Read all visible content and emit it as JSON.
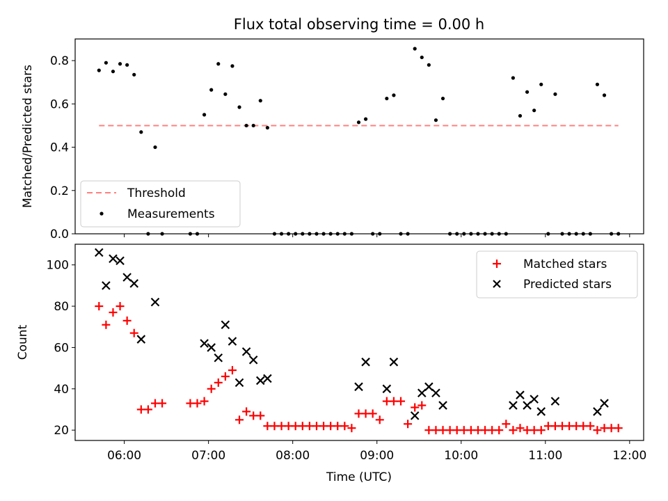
{
  "chart_data": [
    {
      "type": "scatter",
      "title": "Flux total observing time = 0.00 h",
      "ylabel": "Matched/Predicted stars",
      "xlim": [
        "05:25",
        "12:10"
      ],
      "ylim": [
        0,
        0.9
      ],
      "y_ticks": [
        "0.0",
        "0.2",
        "0.4",
        "0.6",
        "0.8"
      ],
      "y_tick_values": [
        0,
        0.2,
        0.4,
        0.6,
        0.8
      ],
      "legend_position": "lower-left",
      "threshold": {
        "name": "Threshold",
        "value": 0.5,
        "x_start": "05:42",
        "x_end": "11:52",
        "color": "#ff7f7f",
        "style": "dashed"
      },
      "series": [
        {
          "name": "Measurements",
          "color": "#000000",
          "marker": "dot",
          "points": [
            [
              "05:42",
              0.755
            ],
            [
              "05:47",
              0.79
            ],
            [
              "05:52",
              0.75
            ],
            [
              "05:57",
              0.785
            ],
            [
              "06:02",
              0.78
            ],
            [
              "06:07",
              0.735
            ],
            [
              "06:12",
              0.47
            ],
            [
              "06:17",
              0.0
            ],
            [
              "06:22",
              0.4
            ],
            [
              "06:27",
              0.0
            ],
            [
              "06:47",
              0.0
            ],
            [
              "06:52",
              0.0
            ],
            [
              "06:57",
              0.55
            ],
            [
              "07:02",
              0.665
            ],
            [
              "07:07",
              0.785
            ],
            [
              "07:12",
              0.645
            ],
            [
              "07:17",
              0.775
            ],
            [
              "07:22",
              0.585
            ],
            [
              "07:27",
              0.5
            ],
            [
              "07:32",
              0.5
            ],
            [
              "07:37",
              0.615
            ],
            [
              "07:42",
              0.49
            ],
            [
              "07:47",
              0.0
            ],
            [
              "07:52",
              0.0
            ],
            [
              "07:57",
              0.0
            ],
            [
              "08:02",
              0.0
            ],
            [
              "08:07",
              0.0
            ],
            [
              "08:12",
              0.0
            ],
            [
              "08:17",
              0.0
            ],
            [
              "08:22",
              0.0
            ],
            [
              "08:27",
              0.0
            ],
            [
              "08:32",
              0.0
            ],
            [
              "08:37",
              0.0
            ],
            [
              "08:42",
              0.0
            ],
            [
              "08:47",
              0.515
            ],
            [
              "08:52",
              0.53
            ],
            [
              "08:57",
              0.0
            ],
            [
              "09:02",
              0.0
            ],
            [
              "09:07",
              0.625
            ],
            [
              "09:12",
              0.64
            ],
            [
              "09:17",
              0.0
            ],
            [
              "09:22",
              0.0
            ],
            [
              "09:27",
              0.855
            ],
            [
              "09:32",
              0.815
            ],
            [
              "09:37",
              0.78
            ],
            [
              "09:42",
              0.525
            ],
            [
              "09:47",
              0.625
            ],
            [
              "09:52",
              0.0
            ],
            [
              "09:57",
              0.0
            ],
            [
              "10:02",
              0.0
            ],
            [
              "10:07",
              0.0
            ],
            [
              "10:12",
              0.0
            ],
            [
              "10:17",
              0.0
            ],
            [
              "10:22",
              0.0
            ],
            [
              "10:27",
              0.0
            ],
            [
              "10:32",
              0.0
            ],
            [
              "10:37",
              0.72
            ],
            [
              "10:42",
              0.545
            ],
            [
              "10:47",
              0.655
            ],
            [
              "10:52",
              0.57
            ],
            [
              "10:57",
              0.69
            ],
            [
              "11:02",
              0.0
            ],
            [
              "11:07",
              0.645
            ],
            [
              "11:12",
              0.0
            ],
            [
              "11:17",
              0.0
            ],
            [
              "11:22",
              0.0
            ],
            [
              "11:27",
              0.0
            ],
            [
              "11:32",
              0.0
            ],
            [
              "11:37",
              0.69
            ],
            [
              "11:42",
              0.64
            ],
            [
              "11:47",
              0.0
            ],
            [
              "11:52",
              0.0
            ]
          ]
        }
      ]
    },
    {
      "type": "scatter",
      "xlabel": "Time (UTC)",
      "ylabel": "Count",
      "xlim": [
        "05:25",
        "12:10"
      ],
      "ylim": [
        15,
        110
      ],
      "x_ticks": [
        "06:00",
        "07:00",
        "08:00",
        "09:00",
        "10:00",
        "11:00",
        "12:00"
      ],
      "y_ticks": [
        "20",
        "40",
        "60",
        "80",
        "100"
      ],
      "y_tick_values": [
        20,
        40,
        60,
        80,
        100
      ],
      "legend_position": "upper-right",
      "series": [
        {
          "name": "Matched stars",
          "color": "#ff0000",
          "marker": "plus",
          "points": [
            [
              "05:42",
              80
            ],
            [
              "05:47",
              71
            ],
            [
              "05:52",
              77
            ],
            [
              "05:57",
              80
            ],
            [
              "06:02",
              73
            ],
            [
              "06:07",
              67
            ],
            [
              "06:12",
              30
            ],
            [
              "06:17",
              30
            ],
            [
              "06:22",
              33
            ],
            [
              "06:27",
              33
            ],
            [
              "06:47",
              33
            ],
            [
              "06:52",
              33
            ],
            [
              "06:57",
              34
            ],
            [
              "07:02",
              40
            ],
            [
              "07:07",
              43
            ],
            [
              "07:12",
              46
            ],
            [
              "07:17",
              49
            ],
            [
              "07:22",
              25
            ],
            [
              "07:27",
              29
            ],
            [
              "07:32",
              27
            ],
            [
              "07:37",
              27
            ],
            [
              "07:42",
              22
            ],
            [
              "07:47",
              22
            ],
            [
              "07:52",
              22
            ],
            [
              "07:57",
              22
            ],
            [
              "08:02",
              22
            ],
            [
              "08:07",
              22
            ],
            [
              "08:12",
              22
            ],
            [
              "08:17",
              22
            ],
            [
              "08:22",
              22
            ],
            [
              "08:27",
              22
            ],
            [
              "08:32",
              22
            ],
            [
              "08:37",
              22
            ],
            [
              "08:42",
              21
            ],
            [
              "08:47",
              28
            ],
            [
              "08:52",
              28
            ],
            [
              "08:57",
              28
            ],
            [
              "09:02",
              25
            ],
            [
              "09:07",
              34
            ],
            [
              "09:12",
              34
            ],
            [
              "09:17",
              34
            ],
            [
              "09:22",
              23
            ],
            [
              "09:27",
              31
            ],
            [
              "09:32",
              32
            ],
            [
              "09:37",
              20
            ],
            [
              "09:42",
              20
            ],
            [
              "09:47",
              20
            ],
            [
              "09:52",
              20
            ],
            [
              "09:57",
              20
            ],
            [
              "10:02",
              20
            ],
            [
              "10:07",
              20
            ],
            [
              "10:12",
              20
            ],
            [
              "10:17",
              20
            ],
            [
              "10:22",
              20
            ],
            [
              "10:27",
              20
            ],
            [
              "10:32",
              23
            ],
            [
              "10:37",
              20
            ],
            [
              "10:42",
              21
            ],
            [
              "10:47",
              20
            ],
            [
              "10:52",
              20
            ],
            [
              "10:57",
              20
            ],
            [
              "11:02",
              22
            ],
            [
              "11:07",
              22
            ],
            [
              "11:12",
              22
            ],
            [
              "11:17",
              22
            ],
            [
              "11:22",
              22
            ],
            [
              "11:27",
              22
            ],
            [
              "11:32",
              22
            ],
            [
              "11:37",
              20
            ],
            [
              "11:42",
              21
            ],
            [
              "11:47",
              21
            ],
            [
              "11:52",
              21
            ]
          ]
        },
        {
          "name": "Predicted stars",
          "color": "#000000",
          "marker": "x",
          "points": [
            [
              "05:42",
              106
            ],
            [
              "05:47",
              90
            ],
            [
              "05:52",
              103
            ],
            [
              "05:57",
              102
            ],
            [
              "06:02",
              94
            ],
            [
              "06:07",
              91
            ],
            [
              "06:12",
              64
            ],
            [
              "06:22",
              82
            ],
            [
              "06:57",
              62
            ],
            [
              "07:02",
              60
            ],
            [
              "07:07",
              55
            ],
            [
              "07:12",
              71
            ],
            [
              "07:17",
              63
            ],
            [
              "07:22",
              43
            ],
            [
              "07:27",
              58
            ],
            [
              "07:32",
              54
            ],
            [
              "07:37",
              44
            ],
            [
              "07:42",
              45
            ],
            [
              "08:47",
              41
            ],
            [
              "08:52",
              53
            ],
            [
              "09:07",
              40
            ],
            [
              "09:12",
              53
            ],
            [
              "09:27",
              27
            ],
            [
              "09:32",
              38
            ],
            [
              "09:37",
              41
            ],
            [
              "09:42",
              38
            ],
            [
              "09:47",
              32
            ],
            [
              "10:37",
              32
            ],
            [
              "10:42",
              37
            ],
            [
              "10:47",
              32
            ],
            [
              "10:52",
              35
            ],
            [
              "10:57",
              29
            ],
            [
              "11:07",
              34
            ],
            [
              "11:37",
              29
            ],
            [
              "11:42",
              33
            ]
          ]
        }
      ]
    }
  ]
}
